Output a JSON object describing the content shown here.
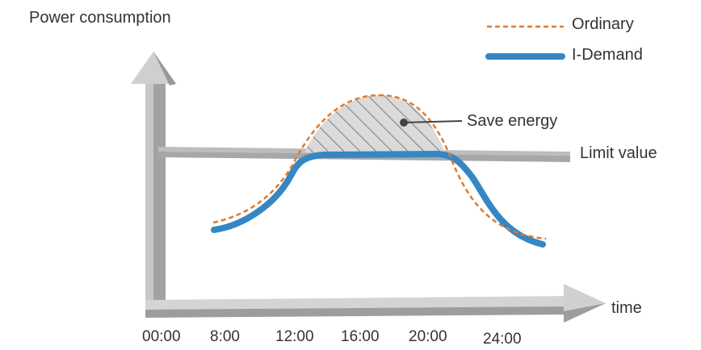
{
  "title": "",
  "axes": {
    "y_label": "Power consumption",
    "x_label": "time"
  },
  "legend": [
    {
      "label": "Ordinary",
      "style": "dashed",
      "color": "#e07a2a"
    },
    {
      "label": "I-Demand",
      "style": "solid",
      "color": "#3487c4"
    }
  ],
  "annotations": {
    "save_energy": "Save energy",
    "limit_value": "Limit value"
  },
  "x_ticks": [
    "00:00",
    "8:00",
    "12:00",
    "16:00",
    "20:00",
    "24:00"
  ],
  "colors": {
    "ordinary": "#e07a2a",
    "idemand": "#3487c4",
    "axis_light": "#d3d3d3",
    "axis_dark": "#9a9a9a",
    "hatch": "#666666",
    "text": "#333333"
  }
}
